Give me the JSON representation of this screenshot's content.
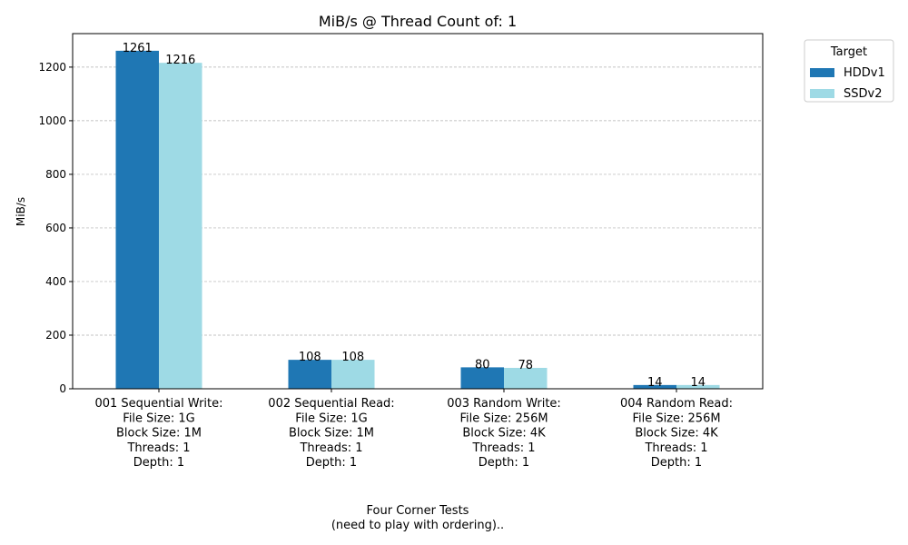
{
  "chart_data": {
    "type": "bar",
    "title": "MiB/s @ Thread Count of: 1",
    "ylabel": "MiB/s",
    "xlabel_lines": [
      "Four Corner Tests",
      "(need to play with ordering).."
    ],
    "ylim": [
      0,
      1325
    ],
    "yticks": [
      0,
      200,
      400,
      600,
      800,
      1000,
      1200
    ],
    "grid": "y-dashed",
    "legend": {
      "title": "Target",
      "placement": "outside-top-right"
    },
    "categories": [
      [
        "001 Sequential Write:",
        "File Size: 1G",
        "Block Size: 1M",
        "Threads: 1",
        "Depth: 1"
      ],
      [
        "002 Sequential Read:",
        "File Size: 1G",
        "Block Size: 1M",
        "Threads: 1",
        "Depth: 1"
      ],
      [
        "003 Random Write:",
        "File Size: 256M",
        "Block Size: 4K",
        "Threads: 1",
        "Depth: 1"
      ],
      [
        "004 Random Read:",
        "File Size: 256M",
        "Block Size: 4K",
        "Threads: 1",
        "Depth: 1"
      ]
    ],
    "series": [
      {
        "name": "HDDv1",
        "color": "#1f77b4",
        "values": [
          1261,
          108,
          80,
          14
        ]
      },
      {
        "name": "SSDv2",
        "color": "#9edae5",
        "values": [
          1216,
          108,
          78,
          14
        ]
      }
    ]
  }
}
